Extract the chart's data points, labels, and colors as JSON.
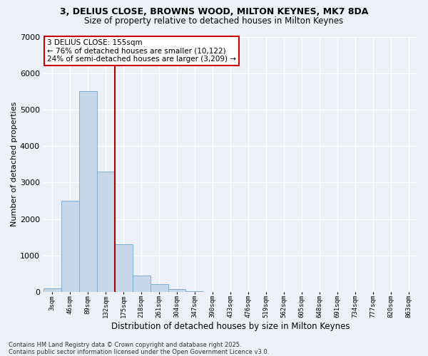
{
  "title_line1": "3, DELIUS CLOSE, BROWNS WOOD, MILTON KEYNES, MK7 8DA",
  "title_line2": "Size of property relative to detached houses in Milton Keynes",
  "xlabel": "Distribution of detached houses by size in Milton Keynes",
  "ylabel": "Number of detached properties",
  "bar_color": "#c8d8ea",
  "bar_edge_color": "#7bafd4",
  "bg_color": "#edf1f7",
  "grid_color": "#ffffff",
  "vline_color": "#aa0000",
  "vline_index": 3.5,
  "annotation_text": "3 DELIUS CLOSE: 155sqm\n← 76% of detached houses are smaller (10,122)\n24% of semi-detached houses are larger (3,209) →",
  "annotation_box_edgecolor": "#cc0000",
  "categories": [
    "3sqm",
    "46sqm",
    "89sqm",
    "132sqm",
    "175sqm",
    "218sqm",
    "261sqm",
    "304sqm",
    "347sqm",
    "390sqm",
    "433sqm",
    "476sqm",
    "519sqm",
    "562sqm",
    "605sqm",
    "648sqm",
    "691sqm",
    "734sqm",
    "777sqm",
    "820sqm",
    "863sqm"
  ],
  "values": [
    100,
    2500,
    5500,
    3300,
    1300,
    450,
    220,
    70,
    15,
    5,
    1,
    0,
    0,
    0,
    0,
    0,
    0,
    0,
    0,
    0,
    0
  ],
  "ylim": [
    0,
    7000
  ],
  "yticks": [
    0,
    1000,
    2000,
    3000,
    4000,
    5000,
    6000,
    7000
  ],
  "footnote": "Contains HM Land Registry data © Crown copyright and database right 2025.\nContains public sector information licensed under the Open Government Licence v3.0.",
  "figsize": [
    6.0,
    5.0
  ],
  "dpi": 100
}
